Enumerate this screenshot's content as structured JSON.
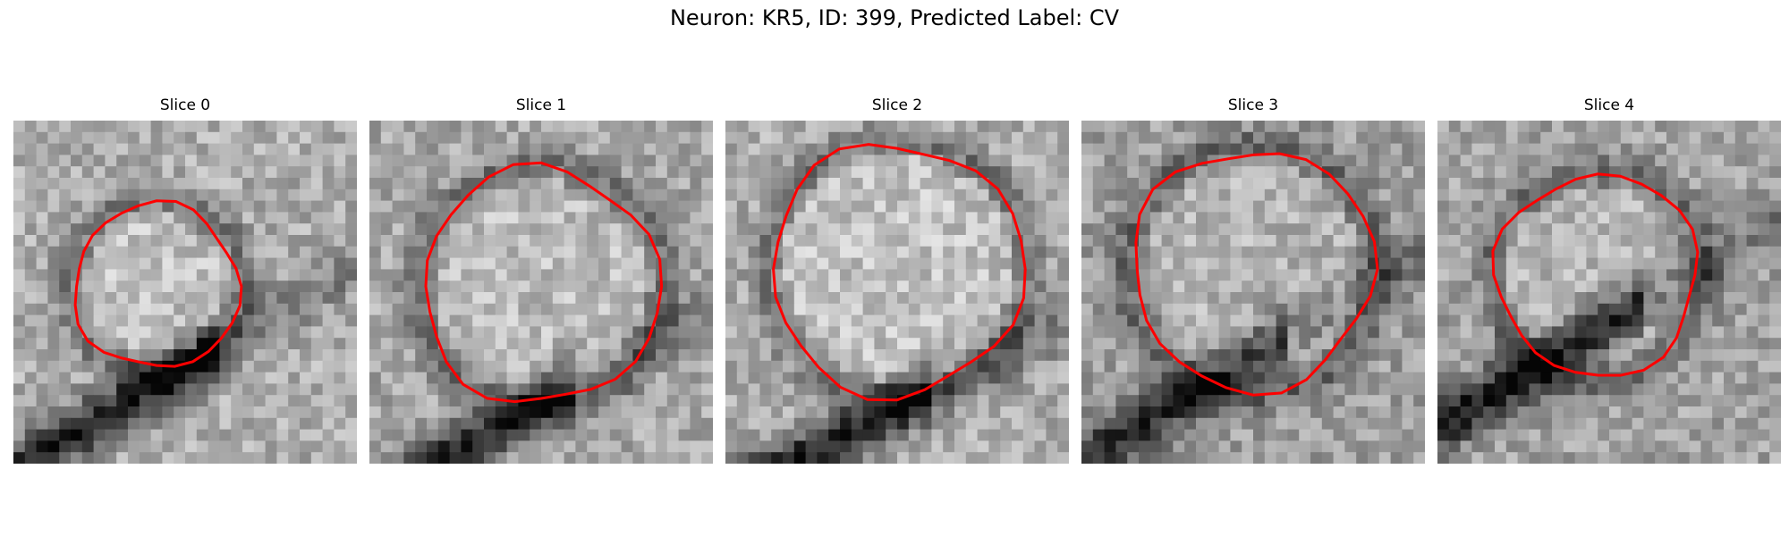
{
  "figure": {
    "title": "Neuron: KR5, ID: 399, Predicted Label: CV",
    "contour_color": "#ff0000",
    "colormap": "grayscale"
  },
  "panels": [
    {
      "title": "Slice 0"
    },
    {
      "title": "Slice 1"
    },
    {
      "title": "Slice 2"
    },
    {
      "title": "Slice 3"
    },
    {
      "title": "Slice 4"
    }
  ]
}
